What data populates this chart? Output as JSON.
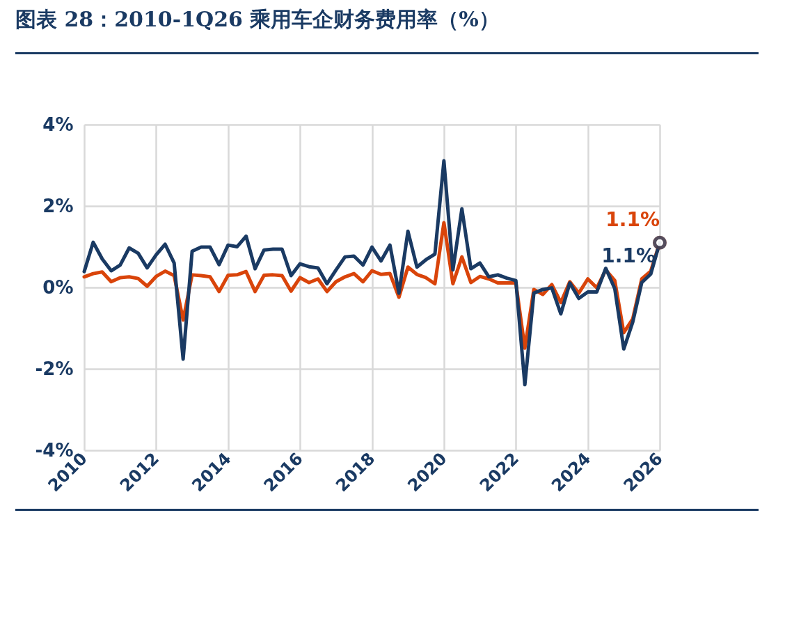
{
  "chart_data": {
    "type": "line",
    "title": "图表 28：2010-1Q26 乘用车企财务费用率（%）",
    "x": [
      2010,
      2010.25,
      2010.5,
      2010.75,
      2011,
      2011.25,
      2011.5,
      2011.75,
      2012,
      2012.25,
      2012.5,
      2012.75,
      2013,
      2013.25,
      2013.5,
      2013.75,
      2014,
      2014.25,
      2014.5,
      2014.75,
      2015,
      2015.25,
      2015.5,
      2015.75,
      2016,
      2016.25,
      2016.5,
      2016.75,
      2017,
      2017.25,
      2017.5,
      2017.75,
      2018,
      2018.25,
      2018.5,
      2018.75,
      2019,
      2019.25,
      2019.5,
      2019.75,
      2020,
      2020.25,
      2020.5,
      2020.75,
      2021,
      2021.25,
      2021.5,
      2021.75,
      2022,
      2022.25,
      2022.5,
      2022.75,
      2023,
      2023.25,
      2023.5,
      2023.75,
      2024,
      2024.25,
      2024.5,
      2024.75,
      2025,
      2025.25,
      2025.5,
      2025.75,
      2026
    ],
    "series": [
      {
        "color": "#d9440a",
        "values": [
          0.26,
          0.34,
          0.38,
          0.14,
          0.24,
          0.26,
          0.22,
          0.03,
          0.27,
          0.4,
          0.29,
          -0.8,
          0.31,
          0.29,
          0.26,
          -0.1,
          0.3,
          0.31,
          0.39,
          -0.1,
          0.3,
          0.31,
          0.29,
          -0.09,
          0.24,
          0.12,
          0.21,
          -0.1,
          0.14,
          0.26,
          0.34,
          0.14,
          0.41,
          0.32,
          0.34,
          -0.24,
          0.5,
          0.32,
          0.24,
          0.09,
          1.59,
          0.09,
          0.75,
          0.12,
          0.27,
          0.21,
          0.11,
          0.11,
          0.11,
          -1.49,
          -0.05,
          -0.17,
          0.07,
          -0.37,
          0.14,
          -0.14,
          0.21,
          -0.01,
          0.43,
          0.17,
          -1.11,
          -0.77,
          0.21,
          0.4,
          1.1
        ],
        "value_labels": [
          null,
          null,
          null,
          null,
          null,
          null,
          null,
          null,
          null,
          null,
          null,
          null,
          null,
          null,
          null,
          null,
          null,
          null,
          null,
          null,
          null,
          null,
          null,
          null,
          null,
          null,
          null,
          null,
          null,
          null,
          null,
          null,
          null,
          null,
          null,
          null,
          null,
          null,
          null,
          null,
          null,
          null,
          null,
          null,
          null,
          null,
          null,
          null,
          null,
          null,
          null,
          null,
          null,
          null,
          null,
          null,
          null,
          null,
          null,
          null,
          null,
          null,
          null,
          null,
          "1.1%"
        ]
      },
      {
        "color": "#1a3a63",
        "values": [
          0.39,
          1.11,
          0.7,
          0.41,
          0.55,
          0.97,
          0.84,
          0.48,
          0.8,
          1.06,
          0.6,
          -1.76,
          0.89,
          0.99,
          0.99,
          0.56,
          1.04,
          1.0,
          1.26,
          0.46,
          0.92,
          0.94,
          0.94,
          0.29,
          0.58,
          0.51,
          0.48,
          0.09,
          0.43,
          0.75,
          0.77,
          0.55,
          0.99,
          0.65,
          1.04,
          -0.14,
          1.38,
          0.5,
          0.68,
          0.82,
          3.11,
          0.43,
          1.93,
          0.46,
          0.6,
          0.26,
          0.31,
          0.23,
          0.17,
          -2.39,
          -0.14,
          -0.05,
          -0.01,
          -0.65,
          0.11,
          -0.27,
          -0.11,
          -0.11,
          0.47,
          -0.03,
          -1.51,
          -0.85,
          0.12,
          0.33,
          1.1
        ],
        "value_labels": [
          null,
          null,
          null,
          null,
          null,
          null,
          null,
          null,
          null,
          null,
          null,
          null,
          null,
          null,
          null,
          null,
          null,
          null,
          null,
          null,
          null,
          null,
          null,
          null,
          null,
          null,
          null,
          null,
          null,
          null,
          null,
          null,
          null,
          null,
          null,
          null,
          null,
          null,
          null,
          null,
          null,
          null,
          null,
          null,
          null,
          null,
          null,
          null,
          null,
          null,
          null,
          null,
          null,
          null,
          null,
          null,
          null,
          null,
          null,
          null,
          null,
          null,
          null,
          null,
          "1.1%"
        ]
      }
    ],
    "xlim": [
      2010,
      2026
    ],
    "xticks": [
      2010,
      2012,
      2014,
      2016,
      2018,
      2020,
      2022,
      2024,
      2026
    ],
    "ylim": [
      -4,
      4
    ],
    "yticks": [
      {
        "value": -4,
        "label": "-4%"
      },
      {
        "value": -2,
        "label": "-2%"
      },
      {
        "value": 0,
        "label": "0%"
      },
      {
        "value": 2,
        "label": "2%"
      },
      {
        "value": 4,
        "label": "4%"
      }
    ],
    "grid": true
  }
}
